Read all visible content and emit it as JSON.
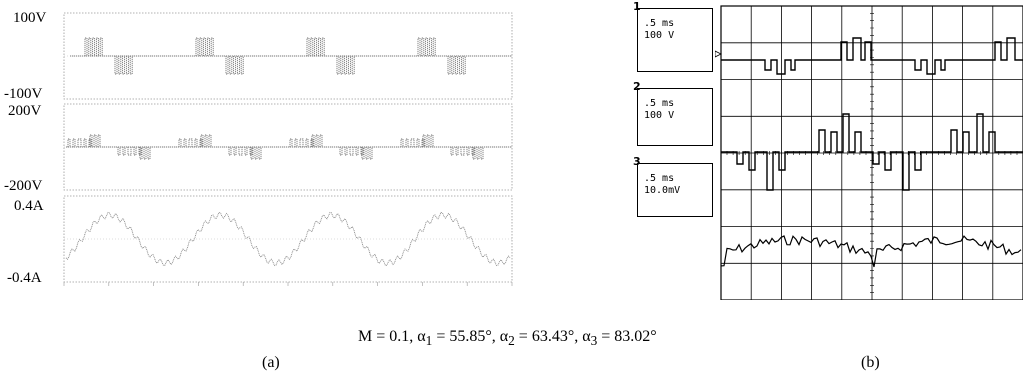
{
  "panel_a": {
    "labels": {
      "v_top_max": "100V",
      "v_top_min": "-100V",
      "v_mid_max": "200V",
      "v_mid_min": "-200V",
      "i_max": "0.4A",
      "i_min": "-0.4A"
    },
    "caption": "(a)"
  },
  "panel_b": {
    "channels": [
      {
        "number": "1",
        "timebase": ".5 ms",
        "scale": "100 V"
      },
      {
        "number": "2",
        "timebase": ".5 ms",
        "scale": "100 V"
      },
      {
        "number": "3",
        "timebase": ".5 ms",
        "scale": "10.0mV"
      }
    ],
    "caption": "(b)"
  },
  "formula": {
    "m": "M = 0.1,",
    "a1_val": " = 55.85°,",
    "a2_val": " = 63.43°,",
    "a3_val": " = 83.02°"
  }
}
